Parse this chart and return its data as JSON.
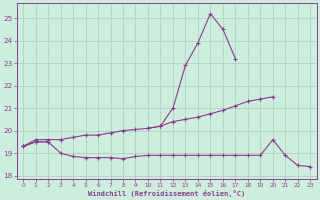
{
  "xlabel": "Windchill (Refroidissement éolien,°C)",
  "bg_color": "#cceedd",
  "line_color": "#993399",
  "grid_color": "#aaccbb",
  "xlim_min": -0.5,
  "xlim_max": 23.5,
  "ylim_min": 17.85,
  "ylim_max": 25.65,
  "yticks": [
    18,
    19,
    20,
    21,
    22,
    23,
    24,
    25
  ],
  "xticks": [
    0,
    1,
    2,
    3,
    4,
    5,
    6,
    7,
    8,
    9,
    10,
    11,
    12,
    13,
    14,
    15,
    16,
    17,
    18,
    19,
    20,
    21,
    22,
    23
  ],
  "hours": [
    0,
    1,
    2,
    3,
    4,
    5,
    6,
    7,
    8,
    9,
    10,
    11,
    12,
    13,
    14,
    15,
    16,
    17,
    18,
    19,
    20,
    21,
    22,
    23
  ],
  "line_top": [
    19.3,
    19.5,
    19.5,
    null,
    null,
    null,
    null,
    null,
    null,
    null,
    20.1,
    20.2,
    21.0,
    22.9,
    23.9,
    25.2,
    24.5,
    23.2,
    null,
    null,
    null,
    null,
    null,
    null
  ],
  "line_mid": [
    19.3,
    19.6,
    19.6,
    19.6,
    19.7,
    19.8,
    19.8,
    19.9,
    20.0,
    20.05,
    20.1,
    20.2,
    20.4,
    20.5,
    20.6,
    20.75,
    20.9,
    21.1,
    21.3,
    21.4,
    21.5,
    null,
    null,
    null
  ],
  "line_low": [
    19.3,
    19.5,
    19.5,
    19.0,
    18.85,
    18.8,
    18.8,
    18.8,
    18.75,
    18.85,
    18.9,
    18.9,
    18.9,
    18.9,
    18.9,
    18.9,
    18.9,
    18.9,
    18.9,
    18.9,
    19.6,
    18.9,
    18.45,
    18.4
  ]
}
